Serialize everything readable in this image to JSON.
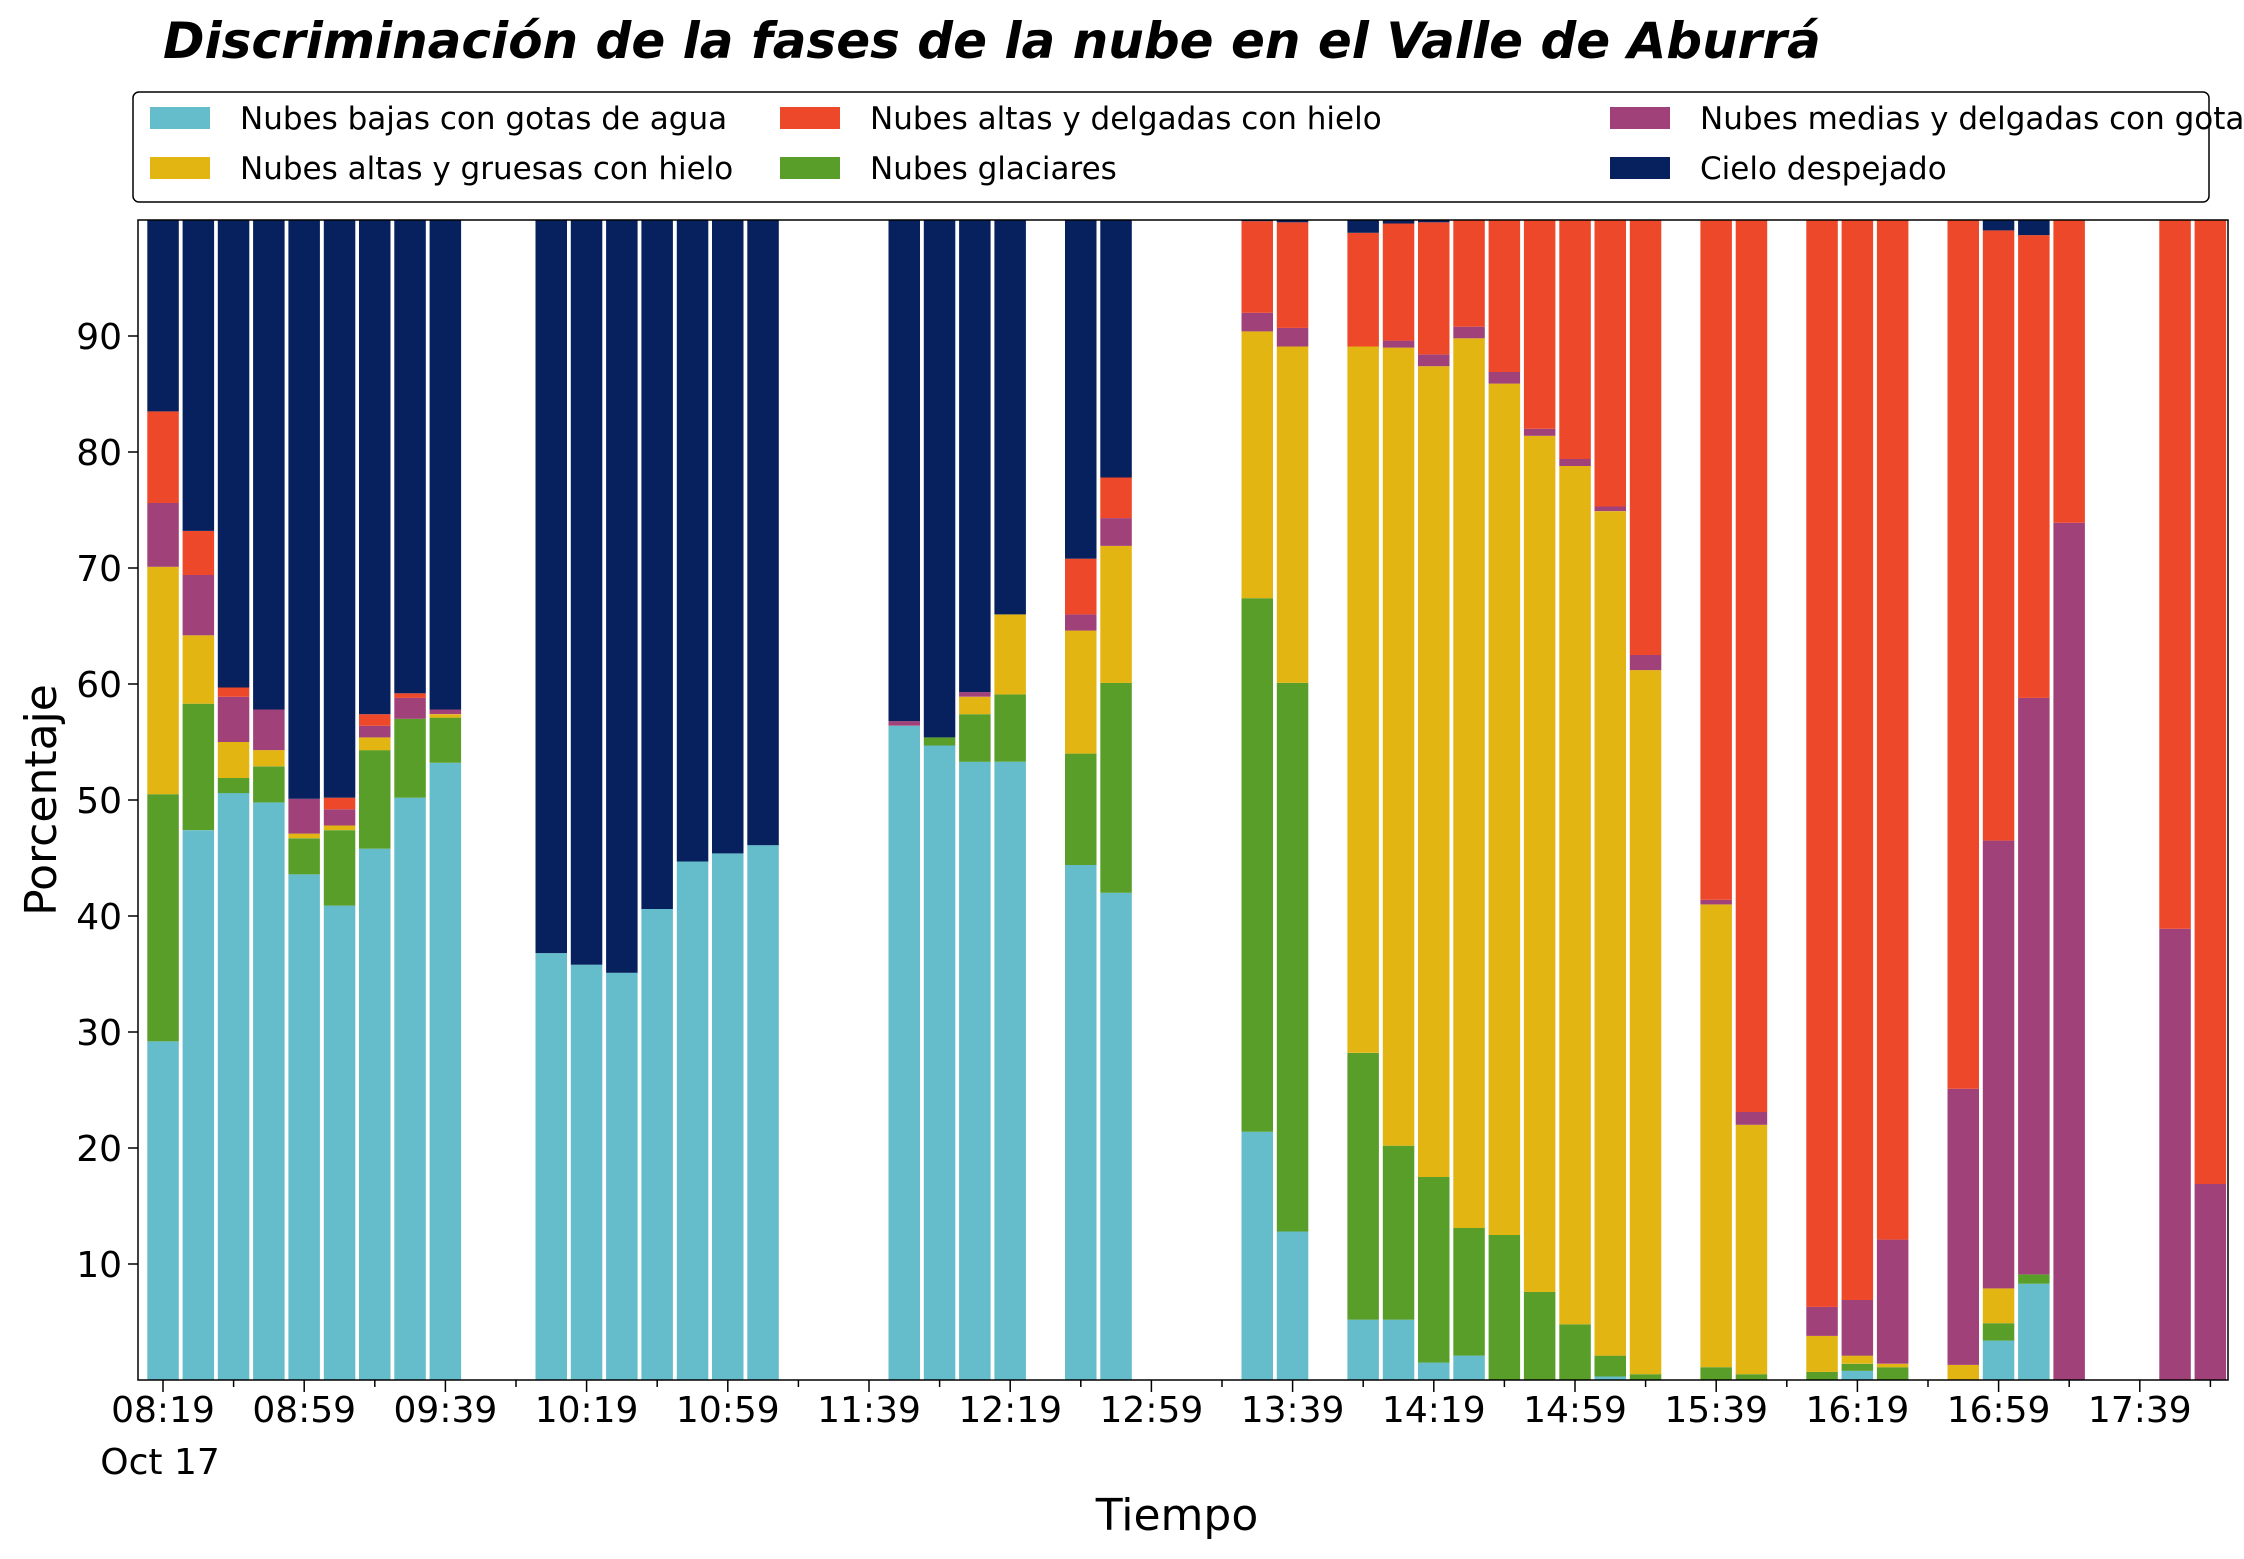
{
  "chart_data": {
    "type": "bar",
    "stacked": true,
    "title": "Discriminación de la fases de la nube en el Valle de Aburrá",
    "xlabel": "Tiempo",
    "ylabel": "Porcentaje",
    "ylim": [
      0,
      100
    ],
    "yticks": [
      10,
      20,
      30,
      40,
      50,
      60,
      70,
      80,
      90
    ],
    "x_tick_labels": [
      "08:19",
      "08:59",
      "09:39",
      "10:19",
      "10:59",
      "11:39",
      "12:19",
      "12:59",
      "13:39",
      "14:19",
      "14:59",
      "15:39",
      "16:19",
      "16:59",
      "17:39"
    ],
    "x_date_label": "Oct 17",
    "x_start": "08:19",
    "x_end": "18:00",
    "bar_interval_minutes": 10,
    "legend_position": "top, above plot, 3 columns",
    "series": [
      {
        "name": "Nubes bajas con gotas de agua",
        "color": "#65BCCA"
      },
      {
        "name": "Nubes glaciares",
        "color": "#5A9E2A"
      },
      {
        "name": "Nubes altas y gruesas con hielo",
        "color": "#E3B512"
      },
      {
        "name": "Nubes medias y delgadas con gotas de agua",
        "color": "#A1417A"
      },
      {
        "name": "Nubes altas y delgadas con hielo",
        "color": "#EE482A"
      },
      {
        "name": "Cielo despejado",
        "color": "#06215E"
      }
    ],
    "legend_order": [
      0,
      2,
      4,
      1,
      3,
      5
    ],
    "bars": [
      {
        "time": "08:19",
        "values": [
          29.2,
          21.3,
          19.6,
          5.5,
          7.9,
          16.5
        ]
      },
      {
        "time": "08:29",
        "values": [
          47.4,
          10.9,
          5.9,
          5.2,
          3.8,
          26.8
        ]
      },
      {
        "time": "08:39",
        "values": [
          50.6,
          1.3,
          3.1,
          3.9,
          0.8,
          40.3
        ]
      },
      {
        "time": "08:49",
        "values": [
          49.8,
          3.1,
          1.4,
          3.5,
          0.0,
          42.2
        ]
      },
      {
        "time": "08:59",
        "values": [
          43.6,
          3.1,
          0.4,
          3.0,
          0.0,
          49.9
        ]
      },
      {
        "time": "09:09",
        "values": [
          40.9,
          6.5,
          0.4,
          1.4,
          1.0,
          49.8
        ]
      },
      {
        "time": "09:19",
        "values": [
          45.8,
          8.5,
          1.1,
          1.0,
          1.0,
          42.6
        ]
      },
      {
        "time": "09:29",
        "values": [
          50.2,
          6.8,
          0.0,
          1.8,
          0.4,
          40.8
        ]
      },
      {
        "time": "09:39",
        "values": [
          53.2,
          3.9,
          0.3,
          0.4,
          0.0,
          42.2
        ]
      },
      {
        "time": "10:09",
        "values": [
          36.8,
          0.0,
          0.0,
          0.0,
          0.0,
          63.2
        ]
      },
      {
        "time": "10:19",
        "values": [
          35.8,
          0.0,
          0.0,
          0.0,
          0.0,
          64.2
        ]
      },
      {
        "time": "10:29",
        "values": [
          35.1,
          0.0,
          0.0,
          0.0,
          0.0,
          64.9
        ]
      },
      {
        "time": "10:39",
        "values": [
          40.6,
          0.0,
          0.0,
          0.0,
          0.0,
          59.4
        ]
      },
      {
        "time": "10:49",
        "values": [
          44.7,
          0.0,
          0.0,
          0.0,
          0.0,
          55.3
        ]
      },
      {
        "time": "10:59",
        "values": [
          45.4,
          0.0,
          0.0,
          0.0,
          0.0,
          54.6
        ]
      },
      {
        "time": "11:09",
        "values": [
          46.1,
          0.0,
          0.0,
          0.0,
          0.0,
          53.9
        ]
      },
      {
        "time": "11:49",
        "values": [
          56.4,
          0.0,
          0.0,
          0.4,
          0.0,
          43.2
        ]
      },
      {
        "time": "11:59",
        "values": [
          54.7,
          0.7,
          0.0,
          0.0,
          0.0,
          44.6
        ]
      },
      {
        "time": "12:09",
        "values": [
          53.3,
          4.1,
          1.5,
          0.4,
          0.0,
          40.7
        ]
      },
      {
        "time": "12:19",
        "values": [
          53.3,
          5.8,
          6.9,
          0.0,
          0.0,
          34.0
        ]
      },
      {
        "time": "12:39",
        "values": [
          44.4,
          9.6,
          10.6,
          1.4,
          4.8,
          29.2
        ]
      },
      {
        "time": "12:49",
        "values": [
          42.0,
          18.1,
          11.8,
          2.4,
          3.5,
          22.2
        ]
      },
      {
        "time": "13:29",
        "values": [
          21.4,
          46.0,
          23.0,
          1.6,
          7.9,
          0.1
        ]
      },
      {
        "time": "13:39",
        "values": [
          12.8,
          47.3,
          29.0,
          1.6,
          9.1,
          0.2
        ]
      },
      {
        "time": "13:59",
        "values": [
          5.2,
          23.0,
          60.9,
          0.0,
          9.8,
          1.1
        ]
      },
      {
        "time": "14:09",
        "values": [
          5.2,
          15.0,
          68.8,
          0.6,
          10.1,
          0.3
        ]
      },
      {
        "time": "14:19",
        "values": [
          1.5,
          16.0,
          69.9,
          1.0,
          11.4,
          0.2
        ]
      },
      {
        "time": "14:29",
        "values": [
          2.1,
          11.0,
          76.7,
          1.0,
          9.2,
          0.0
        ]
      },
      {
        "time": "14:39",
        "values": [
          0.0,
          12.5,
          73.4,
          1.0,
          13.1,
          0.0
        ]
      },
      {
        "time": "14:49",
        "values": [
          0.0,
          7.6,
          73.8,
          0.6,
          18.0,
          0.0
        ]
      },
      {
        "time": "14:59",
        "values": [
          0.0,
          4.8,
          74.0,
          0.6,
          20.6,
          0.0
        ]
      },
      {
        "time": "15:09",
        "values": [
          0.3,
          1.8,
          72.8,
          0.4,
          24.7,
          0.0
        ]
      },
      {
        "time": "15:19",
        "values": [
          0.0,
          0.5,
          60.7,
          1.3,
          37.5,
          0.0
        ]
      },
      {
        "time": "15:39",
        "values": [
          0.0,
          1.1,
          39.9,
          0.4,
          58.6,
          0.0
        ]
      },
      {
        "time": "15:49",
        "values": [
          0.0,
          0.5,
          21.5,
          1.1,
          76.9,
          0.0
        ]
      },
      {
        "time": "16:09",
        "values": [
          0.0,
          0.7,
          3.1,
          2.5,
          93.7,
          0.0
        ]
      },
      {
        "time": "16:19",
        "values": [
          0.8,
          0.6,
          0.7,
          4.8,
          93.1,
          0.0
        ]
      },
      {
        "time": "16:29",
        "values": [
          0.0,
          1.1,
          0.3,
          10.7,
          87.9,
          0.0
        ]
      },
      {
        "time": "16:49",
        "values": [
          0.0,
          0.0,
          1.3,
          23.8,
          74.9,
          0.0
        ]
      },
      {
        "time": "16:59",
        "values": [
          3.4,
          1.5,
          3.0,
          38.6,
          52.6,
          0.9
        ]
      },
      {
        "time": "17:09",
        "values": [
          8.3,
          0.8,
          0.0,
          49.7,
          39.9,
          1.3
        ]
      },
      {
        "time": "17:19",
        "values": [
          0.0,
          0.0,
          0.0,
          73.9,
          26.1,
          0.0
        ]
      },
      {
        "time": "17:49",
        "values": [
          0.0,
          0.0,
          0.0,
          38.9,
          61.1,
          0.0
        ]
      },
      {
        "time": "17:59",
        "values": [
          0.0,
          0.0,
          0.0,
          16.9,
          83.1,
          0.0
        ]
      }
    ]
  }
}
